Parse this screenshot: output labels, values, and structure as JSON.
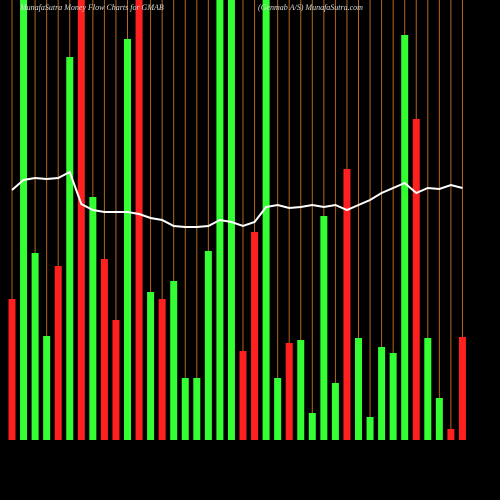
{
  "chart_data": {
    "type": "bar",
    "title": "MunafaSutra  Money Flow  Charts for GMAB",
    "subtitle": "(Genmab A/S) MunafaSutra.com",
    "values": [
      141,
      440,
      187,
      104,
      174,
      383,
      440,
      243,
      181,
      120,
      401,
      440,
      148,
      141,
      159,
      62,
      62,
      189,
      440,
      440,
      89,
      208,
      440,
      62,
      97,
      100,
      27,
      224,
      57,
      271,
      102,
      23,
      93,
      87,
      405,
      321,
      102,
      42,
      11,
      103
    ],
    "colors": [
      "#ff2020",
      "#33ff33",
      "#33ff33",
      "#33ff33",
      "#ff2020",
      "#33ff33",
      "#ff2020",
      "#33ff33",
      "#ff2020",
      "#ff2020",
      "#33ff33",
      "#ff2020",
      "#33ff33",
      "#ff2020",
      "#33ff33",
      "#33ff33",
      "#33ff33",
      "#33ff33",
      "#33ff33",
      "#33ff33",
      "#ff2020",
      "#ff2020",
      "#33ff33",
      "#33ff33",
      "#ff2020",
      "#33ff33",
      "#33ff33",
      "#33ff33",
      "#33ff33",
      "#ff2020",
      "#33ff33",
      "#33ff33",
      "#33ff33",
      "#33ff33",
      "#33ff33",
      "#ff2020",
      "#33ff33",
      "#33ff33",
      "#ff2020",
      "#ff2020"
    ],
    "line_values": [
      250,
      260,
      262,
      261,
      262,
      268,
      236,
      230,
      228,
      228,
      228,
      226,
      222,
      220,
      214,
      213,
      213,
      214,
      220,
      218,
      214,
      218,
      233,
      235,
      232,
      233,
      235,
      233,
      235,
      230,
      235,
      240,
      247,
      252,
      257,
      247,
      252,
      251,
      255,
      252
    ],
    "line_color": "#ffffff",
    "grid_color": "#b5651d",
    "ylim": [
      0,
      440
    ]
  }
}
